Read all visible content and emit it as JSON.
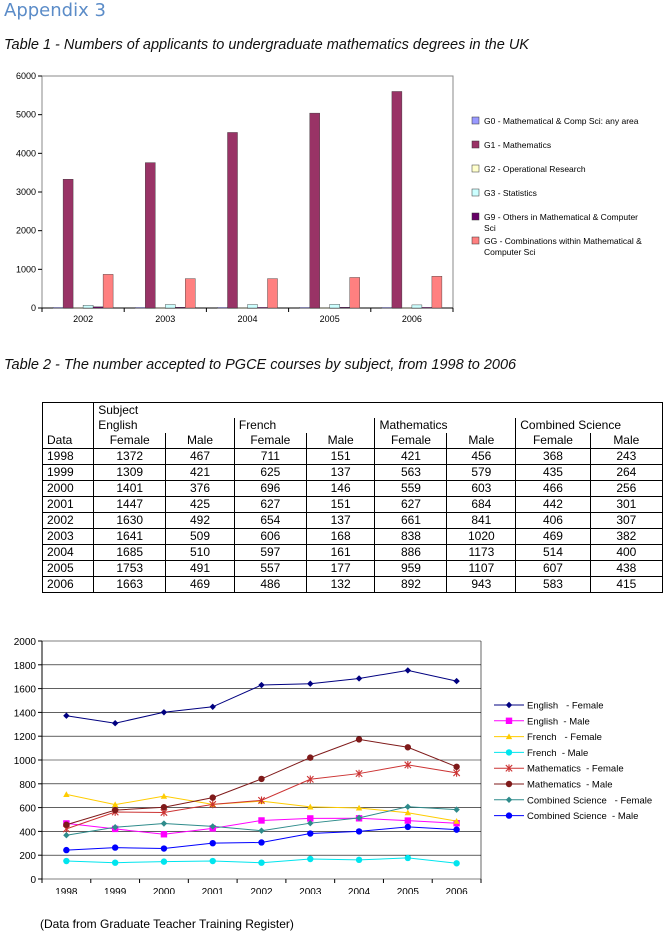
{
  "page": {
    "heading": "Appendix 3",
    "table1_caption": "Table 1 - Numbers of applicants to undergraduate mathematics degrees in the UK",
    "table2_caption": "Table 2 - The number accepted to PGCE courses by subject, from 1998 to 2006",
    "source_note": "(Data from Graduate Teacher Training Register)"
  },
  "pgce_table": {
    "subject_label": "Subject",
    "data_label": "Data",
    "subjects": [
      "English",
      "French",
      "Mathematics",
      "Combined Science"
    ],
    "sub_headers": [
      "Female",
      "Male"
    ],
    "rows": [
      [
        "1998",
        "1372",
        "467",
        "711",
        "151",
        "421",
        "456",
        "368",
        "243"
      ],
      [
        "1999",
        "1309",
        "421",
        "625",
        "137",
        "563",
        "579",
        "435",
        "264"
      ],
      [
        "2000",
        "1401",
        "376",
        "696",
        "146",
        "559",
        "603",
        "466",
        "256"
      ],
      [
        "2001",
        "1447",
        "425",
        "627",
        "151",
        "627",
        "684",
        "442",
        "301"
      ],
      [
        "2002",
        "1630",
        "492",
        "654",
        "137",
        "661",
        "841",
        "406",
        "307"
      ],
      [
        "2003",
        "1641",
        "509",
        "606",
        "168",
        "838",
        "1020",
        "469",
        "382"
      ],
      [
        "2004",
        "1685",
        "510",
        "597",
        "161",
        "886",
        "1173",
        "514",
        "400"
      ],
      [
        "2005",
        "1753",
        "491",
        "557",
        "177",
        "959",
        "1107",
        "607",
        "438"
      ],
      [
        "2006",
        "1663",
        "469",
        "486",
        "132",
        "892",
        "943",
        "583",
        "415"
      ]
    ]
  },
  "chart_data": [
    {
      "type": "bar",
      "title": "",
      "categories": [
        "2002",
        "2003",
        "2004",
        "2005",
        "2006"
      ],
      "ylim": [
        0,
        6000
      ],
      "yticks": [
        "0",
        "1000",
        "2000",
        "3000",
        "4000",
        "5000",
        "6000"
      ],
      "legend_position": "right",
      "series": [
        {
          "name": "G0 - Mathematical & Comp Sci: any area",
          "color": "#9999ff",
          "values": [
            15,
            15,
            15,
            15,
            15
          ]
        },
        {
          "name": "G1 - Mathematics",
          "color": "#993366",
          "values": [
            3330,
            3760,
            4540,
            5040,
            5600
          ]
        },
        {
          "name": "G2 - Operational Research",
          "color": "#ffffcc",
          "values": [
            10,
            10,
            10,
            10,
            10
          ]
        },
        {
          "name": "G3 - Statistics",
          "color": "#ccffff",
          "values": [
            70,
            90,
            90,
            95,
            80
          ]
        },
        {
          "name": "G9 - Others in Mathematical & Computer Sci",
          "color": "#660066",
          "values": [
            30,
            20,
            15,
            20,
            15
          ]
        },
        {
          "name": "GG - Combinations within Mathematical & Computer Sci",
          "color": "#ff8080",
          "values": [
            870,
            760,
            760,
            790,
            820
          ]
        }
      ]
    },
    {
      "type": "line",
      "title": "",
      "categories": [
        "1998",
        "1999",
        "2000",
        "2001",
        "2002",
        "2003",
        "2004",
        "2005",
        "2006"
      ],
      "ylim": [
        0,
        2000
      ],
      "yticks": [
        "0",
        "200",
        "400",
        "600",
        "800",
        "1000",
        "1200",
        "1400",
        "1600",
        "1800",
        "2000"
      ],
      "grid": true,
      "legend_position": "right",
      "series": [
        {
          "name": "English   - Female",
          "color": "#000080",
          "marker": "diamond",
          "values": [
            1372,
            1309,
            1401,
            1447,
            1630,
            1641,
            1685,
            1753,
            1663
          ]
        },
        {
          "name": "English  - Male",
          "color": "#ff00ff",
          "marker": "square",
          "values": [
            467,
            421,
            376,
            425,
            492,
            509,
            510,
            491,
            469
          ]
        },
        {
          "name": "French   - Female",
          "color": "#ffcc00",
          "marker": "triangle",
          "values": [
            711,
            625,
            696,
            627,
            654,
            606,
            597,
            557,
            486
          ]
        },
        {
          "name": "French  - Male",
          "color": "#00e5ee",
          "marker": "circle",
          "values": [
            151,
            137,
            146,
            151,
            137,
            168,
            161,
            177,
            132
          ]
        },
        {
          "name": "Mathematics  - Female",
          "color": "#cc3333",
          "marker": "star",
          "values": [
            421,
            563,
            559,
            627,
            661,
            838,
            886,
            959,
            892
          ]
        },
        {
          "name": "Mathematics  - Male",
          "color": "#7f1a1a",
          "marker": "circle",
          "values": [
            456,
            579,
            603,
            684,
            841,
            1020,
            1173,
            1107,
            943
          ]
        },
        {
          "name": "Combined Science   - Female",
          "color": "#2e8b8b",
          "marker": "diamond",
          "values": [
            368,
            435,
            466,
            442,
            406,
            469,
            514,
            607,
            583
          ]
        },
        {
          "name": "Combined Science  - Male",
          "color": "#0000ff",
          "marker": "circle",
          "values": [
            243,
            264,
            256,
            301,
            307,
            382,
            400,
            438,
            415
          ]
        }
      ]
    }
  ]
}
